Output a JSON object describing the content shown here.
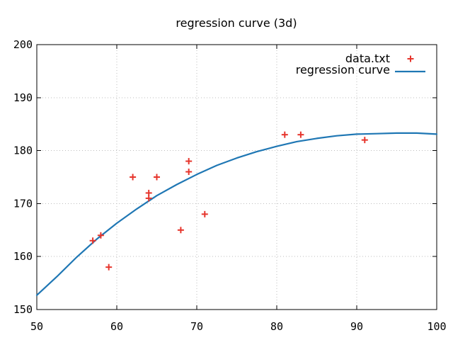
{
  "chart_data": {
    "type": "scatter",
    "title": "regression curve (3d)",
    "xlabel": "",
    "ylabel": "",
    "xlim": [
      50,
      100
    ],
    "ylim": [
      150,
      200
    ],
    "x_ticks": [
      "50",
      "60",
      "70",
      "80",
      "90",
      "100"
    ],
    "y_ticks": [
      "150",
      "160",
      "170",
      "180",
      "190",
      "200"
    ],
    "grid": true,
    "legend_position": "top-right-inside",
    "series": [
      {
        "name": "data.txt",
        "type": "scatter",
        "marker": "plus",
        "color": "#e6352c",
        "points": [
          [
            57,
            163
          ],
          [
            58,
            164
          ],
          [
            59,
            158
          ],
          [
            62,
            175
          ],
          [
            64,
            171
          ],
          [
            64,
            172
          ],
          [
            65,
            175
          ],
          [
            68,
            165
          ],
          [
            69,
            176
          ],
          [
            69,
            178
          ],
          [
            71,
            168
          ],
          [
            81,
            183
          ],
          [
            83,
            183
          ],
          [
            91,
            182
          ]
        ]
      },
      {
        "name": "regression curve",
        "type": "line",
        "color": "#1f77b4",
        "x": [
          50,
          52.5,
          55,
          57.5,
          60,
          62.5,
          65,
          67.5,
          70,
          72.5,
          75,
          77.5,
          80,
          82.5,
          85,
          87.5,
          90,
          92.5,
          95,
          97.5,
          100
        ],
        "y": [
          152.7,
          156.2,
          159.9,
          163.3,
          166.3,
          169.0,
          171.5,
          173.6,
          175.5,
          177.2,
          178.6,
          179.8,
          180.8,
          181.7,
          182.3,
          182.8,
          183.1,
          183.2,
          183.3,
          183.3,
          183.1
        ]
      }
    ]
  }
}
